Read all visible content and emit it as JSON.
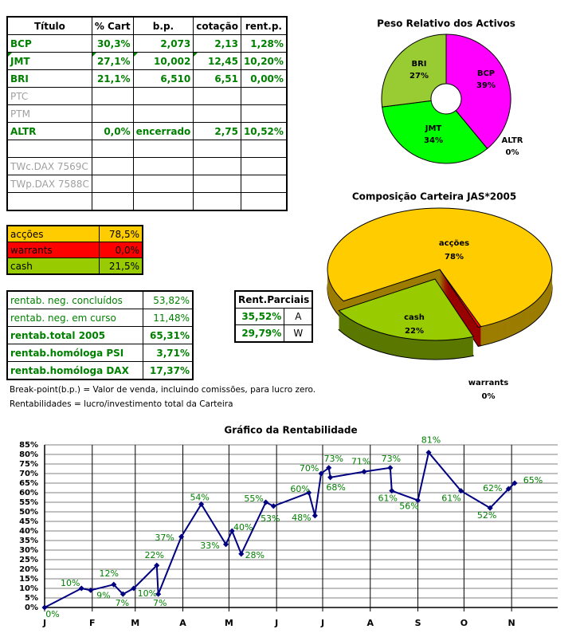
{
  "holdings_table": {
    "headers": [
      "Título",
      "% Cart",
      "b.p.",
      "cotação",
      "rent.p."
    ],
    "rows": [
      {
        "titulo": "BCP",
        "cart": "30,3%",
        "bp": "2,073",
        "cotacao": "2,13",
        "rent": "1,28%",
        "style": "active"
      },
      {
        "titulo": "JMT",
        "cart": "27,1%",
        "bp": "10,002",
        "cotacao": "12,45",
        "rent": "10,20%",
        "style": "active"
      },
      {
        "titulo": "BRI",
        "cart": "21,1%",
        "bp": "6,510",
        "cotacao": "6,51",
        "rent": "0,00%",
        "style": "active"
      },
      {
        "titulo": "PTC",
        "cart": "",
        "bp": "",
        "cotacao": "",
        "rent": "",
        "style": "inactive"
      },
      {
        "titulo": "PTM",
        "cart": "",
        "bp": "",
        "cotacao": "",
        "rent": "",
        "style": "inactive"
      },
      {
        "titulo": "ALTR",
        "cart": "0,0%",
        "bp": "encerrado",
        "cotacao": "2,75",
        "rent": "10,52%",
        "style": "active"
      },
      {
        "titulo": "",
        "cart": "",
        "bp": "",
        "cotacao": "",
        "rent": "",
        "style": "inactive"
      },
      {
        "titulo": "TWc.DAX 7569C",
        "cart": "",
        "bp": "",
        "cotacao": "",
        "rent": "",
        "style": "inactive"
      },
      {
        "titulo": "TWp.DAX 7588C",
        "cart": "",
        "bp": "",
        "cotacao": "",
        "rent": "",
        "style": "inactive"
      },
      {
        "titulo": "",
        "cart": "",
        "bp": "",
        "cotacao": "",
        "rent": "",
        "style": "inactive"
      }
    ]
  },
  "allocation_table": [
    {
      "label": "acções",
      "value": "78,5%",
      "color": "#ffcc00"
    },
    {
      "label": "warrants",
      "value": "0,0%",
      "color": "#ff0000"
    },
    {
      "label": "cash",
      "value": "21,5%",
      "color": "#99cc00"
    }
  ],
  "returns_table": [
    {
      "label": "rentab. neg. concluídos",
      "value": "53,82%",
      "bold": false
    },
    {
      "label": "rentab. neg. em curso",
      "value": "11,48%",
      "bold": false
    },
    {
      "label": "rentab.total 2005",
      "value": "65,31%",
      "bold": true
    },
    {
      "label": "rentab.homóloga PSI",
      "value": "3,71%",
      "bold": true
    },
    {
      "label": "rentab.homóloga DAX",
      "value": "17,37%",
      "bold": true
    }
  ],
  "partial_table": {
    "header": "Rent.Parciais",
    "rows": [
      {
        "value": "35,52%",
        "key": "A"
      },
      {
        "value": "29,79%",
        "key": "W"
      }
    ]
  },
  "notes": [
    "Break-point(b.p.) = Valor de venda, incluindo comissões, para lucro zero.",
    "Rentabilidades = lucro/investimento total da Carteira"
  ],
  "chart_data": [
    {
      "type": "pie",
      "title": "Peso Relativo dos Activos",
      "style": "doughnut",
      "slices": [
        {
          "label": "BCP",
          "value": 39,
          "display": "39%",
          "color": "#ff00ff"
        },
        {
          "label": "JMT",
          "value": 34,
          "display": "34%",
          "color": "#00ff00"
        },
        {
          "label": "BRI",
          "value": 27,
          "display": "27%",
          "color": "#99cc33"
        },
        {
          "label": "ALTR",
          "value": 0,
          "display": "0%",
          "color": "#ff9900"
        }
      ]
    },
    {
      "type": "pie",
      "title": "Composição Carteira JAS*2005",
      "style": "3d",
      "slices": [
        {
          "label": "acções",
          "value": 78,
          "display": "78%",
          "color": "#ffcc00",
          "side_color": "#9c7d00"
        },
        {
          "label": "cash",
          "value": 22,
          "display": "22%",
          "color": "#99cc00",
          "side_color": "#5a7800",
          "exploded": true
        },
        {
          "label": "warrants",
          "value": 0,
          "display": "0%",
          "color": "#ff0000",
          "side_color": "#990000"
        }
      ]
    },
    {
      "type": "line",
      "title": "Gráfico da Rentabilidade",
      "x_tick_labels": [
        "J",
        "F",
        "M",
        "A",
        "M",
        "J",
        "J",
        "A",
        "S",
        "O",
        "N"
      ],
      "xlim": [
        "2005-01-01",
        "2005-12-01"
      ],
      "ylim": [
        0,
        85
      ],
      "y_tick_step": 5,
      "y_tick_format": "percent",
      "grid": {
        "horizontal": true,
        "vertical_months": true
      },
      "line_color": "#000080",
      "label_color": "#008000",
      "points": [
        {
          "x": "2005-01-01",
          "y": 0
        },
        {
          "x": "2005-01-25",
          "y": 10
        },
        {
          "x": "2005-01-31",
          "y": 9
        },
        {
          "x": "2005-02-15",
          "y": 12
        },
        {
          "x": "2005-02-21",
          "y": 7
        },
        {
          "x": "2005-02-28",
          "y": 10
        },
        {
          "x": "2005-03-15",
          "y": 22
        },
        {
          "x": "2005-03-16",
          "y": 7
        },
        {
          "x": "2005-03-31",
          "y": 37
        },
        {
          "x": "2005-04-13",
          "y": 54
        },
        {
          "x": "2005-04-29",
          "y": 33
        },
        {
          "x": "2005-05-03",
          "y": 40
        },
        {
          "x": "2005-05-09",
          "y": 28
        },
        {
          "x": "2005-05-25",
          "y": 55
        },
        {
          "x": "2005-05-30",
          "y": 53
        },
        {
          "x": "2005-06-22",
          "y": 60
        },
        {
          "x": "2005-06-26",
          "y": 48
        },
        {
          "x": "2005-06-30",
          "y": 70
        },
        {
          "x": "2005-07-05",
          "y": 73
        },
        {
          "x": "2005-07-06",
          "y": 68
        },
        {
          "x": "2005-07-28",
          "y": 71
        },
        {
          "x": "2005-08-14",
          "y": 73
        },
        {
          "x": "2005-08-15",
          "y": 61
        },
        {
          "x": "2005-09-01",
          "y": 56
        },
        {
          "x": "2005-09-08",
          "y": 81
        },
        {
          "x": "2005-09-29",
          "y": 61
        },
        {
          "x": "2005-10-18",
          "y": 52
        },
        {
          "x": "2005-10-30",
          "y": 62
        },
        {
          "x": "2005-11-03",
          "y": 65
        }
      ]
    }
  ]
}
